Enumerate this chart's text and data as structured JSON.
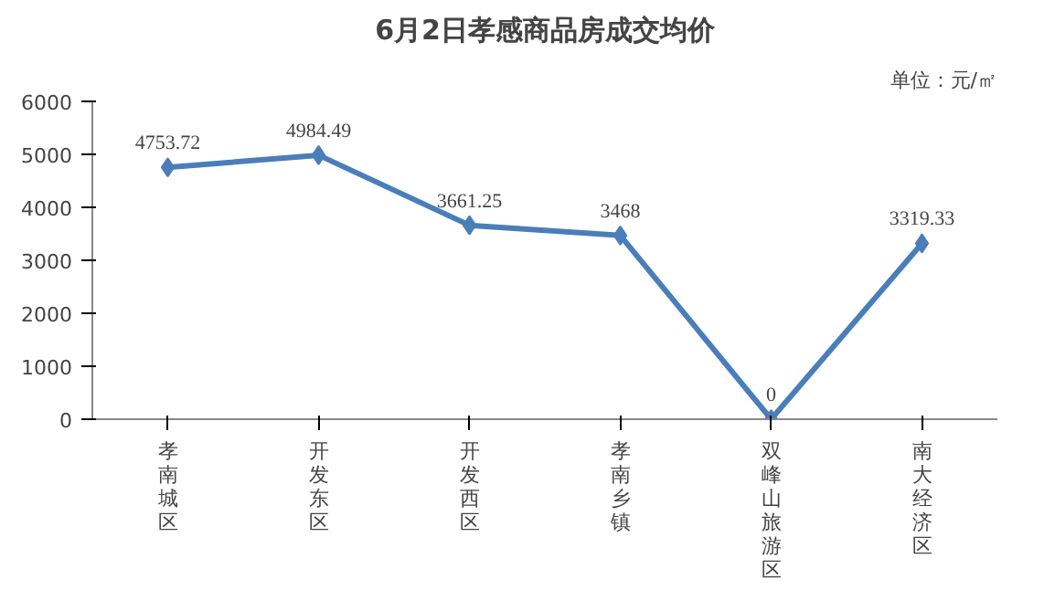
{
  "chart_data": {
    "type": "line",
    "title": "6月2日孝感商品房成交均价",
    "categories": [
      "孝南城区",
      "开发东区",
      "开发西区",
      "孝南乡镇",
      "双峰山旅游区",
      "南大经济区"
    ],
    "series": [
      {
        "color": "#4a7ebb",
        "values": [
          4753.72,
          4984.49,
          3661.25,
          3468,
          0,
          3319.33
        ]
      }
    ],
    "ylim": [
      0,
      6000
    ],
    "yticks": [
      0,
      1000,
      2000,
      3000,
      4000,
      5000,
      6000
    ],
    "annotations": [
      "单位：元/㎡"
    ],
    "data_labels": true,
    "marker": "diamond"
  }
}
